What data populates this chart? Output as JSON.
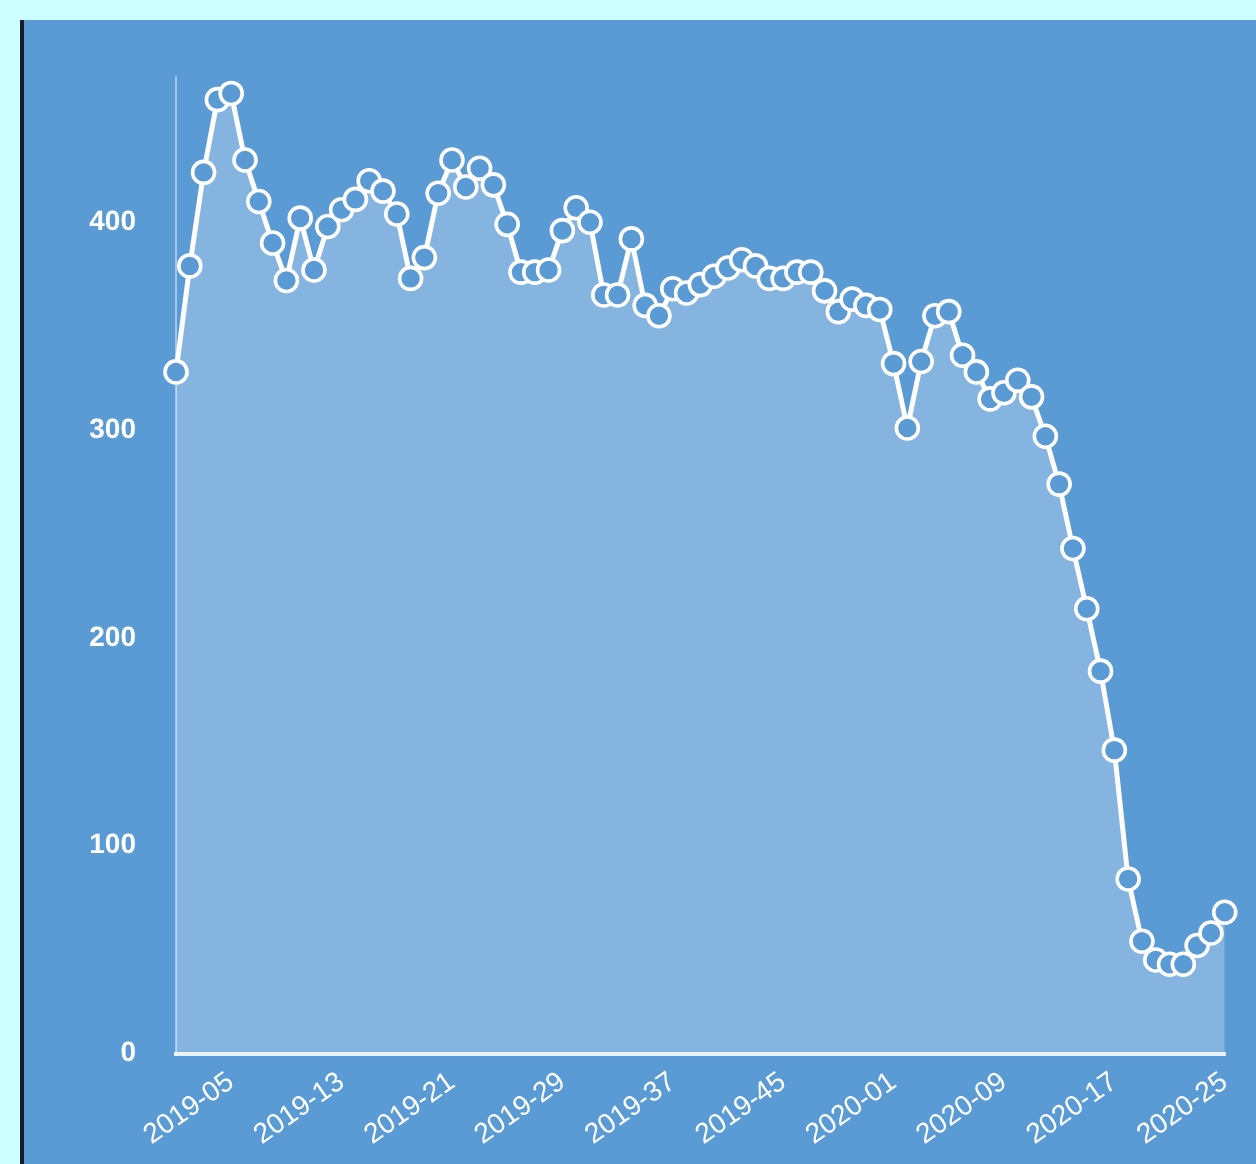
{
  "chart_data": {
    "type": "area",
    "categories": [
      null,
      null,
      null,
      null,
      "2019-05",
      null,
      null,
      null,
      null,
      null,
      null,
      null,
      "2019-13",
      null,
      null,
      null,
      null,
      null,
      null,
      null,
      "2019-21",
      null,
      null,
      null,
      null,
      null,
      null,
      null,
      "2019-29",
      null,
      null,
      null,
      null,
      null,
      null,
      null,
      "2019-37",
      null,
      null,
      null,
      null,
      null,
      null,
      null,
      "2019-45",
      null,
      null,
      null,
      null,
      null,
      null,
      null,
      "2020-01",
      null,
      null,
      null,
      null,
      null,
      null,
      null,
      "2020-09",
      null,
      null,
      null,
      null,
      null,
      null,
      null,
      "2020-17",
      null,
      null,
      null,
      null,
      null,
      null,
      null,
      "2020-25"
    ],
    "series": [
      {
        "color": "#ffffff",
        "values": [
          328,
          379,
          424,
          459,
          462,
          430,
          410,
          390,
          372,
          402,
          377,
          398,
          406,
          411,
          420,
          415,
          404,
          373,
          383,
          414,
          430,
          417,
          426,
          418,
          399,
          376,
          376,
          377,
          396,
          407,
          400,
          365,
          365,
          392,
          360,
          355,
          368,
          366,
          370,
          374,
          378,
          382,
          379,
          373,
          373,
          376,
          376,
          367,
          357,
          363,
          360,
          358,
          332,
          301,
          333,
          355,
          357,
          336,
          328,
          315,
          318,
          324,
          316,
          297,
          274,
          243,
          214,
          184,
          146,
          84,
          54,
          45,
          43,
          43,
          52,
          58,
          68
        ]
      }
    ],
    "ylim": [
      0,
      470
    ],
    "yticks": [
      0,
      100,
      200,
      300,
      400
    ],
    "grid": false,
    "legend": false,
    "marker": "circle"
  }
}
